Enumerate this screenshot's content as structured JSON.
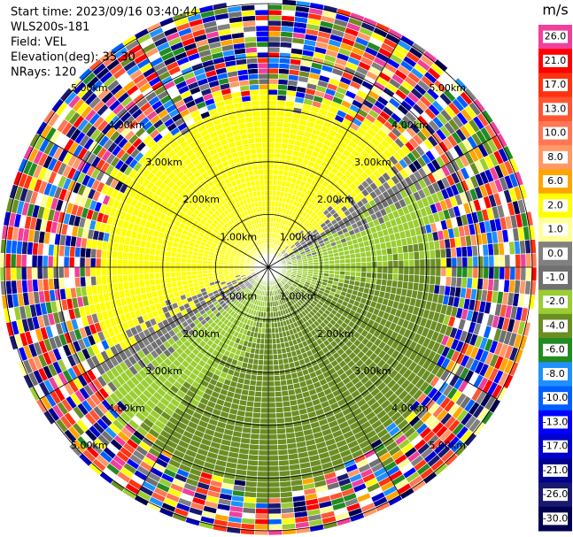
{
  "chart_data": {
    "type": "ppi",
    "header": [
      "Start time: 2023/09/16 03:40:44",
      "WLS200s-181",
      "Field: VEL",
      "Elevation(deg): 35.30",
      "NRays: 120"
    ],
    "ring_labels": [
      "1.00km",
      "2.00km",
      "3.00km",
      "4.00km",
      "5.00km"
    ],
    "colorbar_unit": "m/s",
    "colorbar": [
      {
        "value": 26,
        "label": "26.0",
        "color": "#f0409c"
      },
      {
        "value": 21,
        "label": "21.0",
        "color": "#ff0000"
      },
      {
        "value": 17,
        "label": "17.0",
        "color": "#ff3311"
      },
      {
        "value": 13,
        "label": "13.0",
        "color": "#ff5533"
      },
      {
        "value": 10,
        "label": "10.0",
        "color": "#ff7755"
      },
      {
        "value": 8,
        "label": "8.0",
        "color": "#ff9966"
      },
      {
        "value": 6,
        "label": "6.0",
        "color": "#ffa500"
      },
      {
        "value": 2,
        "label": "2.0",
        "color": "#ffff00"
      },
      {
        "value": 1,
        "label": "1.0",
        "color": "#ffff99"
      },
      {
        "value": 0,
        "label": "0.0",
        "color": "#808080"
      },
      {
        "value": -1,
        "label": "-1.0",
        "color": "#707070"
      },
      {
        "value": -2,
        "label": "-2.0",
        "color": "#9acd32"
      },
      {
        "value": -4,
        "label": "-4.0",
        "color": "#6b8e23"
      },
      {
        "value": -6,
        "label": "-6.0",
        "color": "#228b22"
      },
      {
        "value": -8,
        "label": "-8.0",
        "color": "#1e90ff"
      },
      {
        "value": -10,
        "label": "-10.0",
        "color": "#0060ff"
      },
      {
        "value": -13,
        "label": "-13.0",
        "color": "#0000ff"
      },
      {
        "value": -17,
        "label": "-17.0",
        "color": "#0000cd"
      },
      {
        "value": -21,
        "label": "-21.0",
        "color": "#000090"
      },
      {
        "value": -26,
        "label": "-26.0",
        "color": "#191970"
      },
      {
        "value": -30,
        "label": "-30.0",
        "color": "#000050"
      }
    ]
  }
}
